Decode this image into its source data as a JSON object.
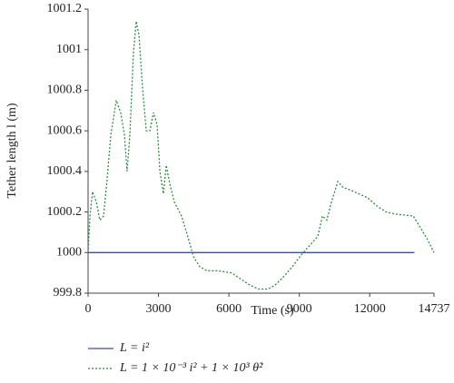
{
  "chart_data": {
    "type": "line",
    "xlabel": "Time (s)",
    "ylabel": "Tether length l (m)",
    "xlim": [
      0,
      14737
    ],
    "xticks": [
      0,
      3000,
      6000,
      9000,
      12000,
      14737
    ],
    "ylim": [
      999.8,
      1001.2
    ],
    "yticks": [
      999.8,
      1000,
      1000.2,
      1000.4,
      1000.6,
      1000.8,
      1001,
      1001.2
    ],
    "legend": "bottom",
    "series": [
      {
        "name": "L = i²",
        "color": "#3a4ea8",
        "dash": "solid",
        "x": [
          0,
          13900
        ],
        "values": [
          1000,
          1000
        ]
      },
      {
        "name": "L = 1 × 10⁻³ i² + 1 × 10³ θ̇²",
        "color": "#2e8b3e",
        "dash": "dotted",
        "x": [
          0,
          80,
          190,
          350,
          500,
          660,
          810,
          970,
          1200,
          1390,
          1550,
          1660,
          1780,
          1930,
          2050,
          2170,
          2320,
          2480,
          2630,
          2790,
          2940,
          3060,
          3210,
          3330,
          3480,
          3670,
          3980,
          4220,
          4490,
          4760,
          5070,
          5530,
          6110,
          6500,
          6890,
          7270,
          7660,
          7970,
          8320,
          8700,
          9090,
          9480,
          9790,
          9980,
          10170,
          10370,
          10640,
          10870,
          11140,
          11530,
          11910,
          12300,
          12690,
          13080,
          13850,
          14120,
          14430,
          14737
        ],
        "values": [
          1000.0,
          1000.18,
          1000.3,
          1000.25,
          1000.16,
          1000.18,
          1000.36,
          1000.58,
          1000.75,
          1000.69,
          1000.58,
          1000.4,
          1000.58,
          1000.98,
          1001.14,
          1001.07,
          1000.81,
          1000.6,
          1000.6,
          1000.69,
          1000.63,
          1000.4,
          1000.29,
          1000.43,
          1000.34,
          1000.25,
          1000.18,
          1000.09,
          999.98,
          999.93,
          999.91,
          999.91,
          999.9,
          999.87,
          999.84,
          999.82,
          999.82,
          999.84,
          999.88,
          999.93,
          999.99,
          1000.04,
          1000.08,
          1000.18,
          1000.16,
          1000.25,
          1000.35,
          1000.32,
          1000.31,
          1000.29,
          1000.27,
          1000.23,
          1000.2,
          1000.19,
          1000.18,
          1000.13,
          1000.07,
          1000.0
        ]
      }
    ]
  }
}
